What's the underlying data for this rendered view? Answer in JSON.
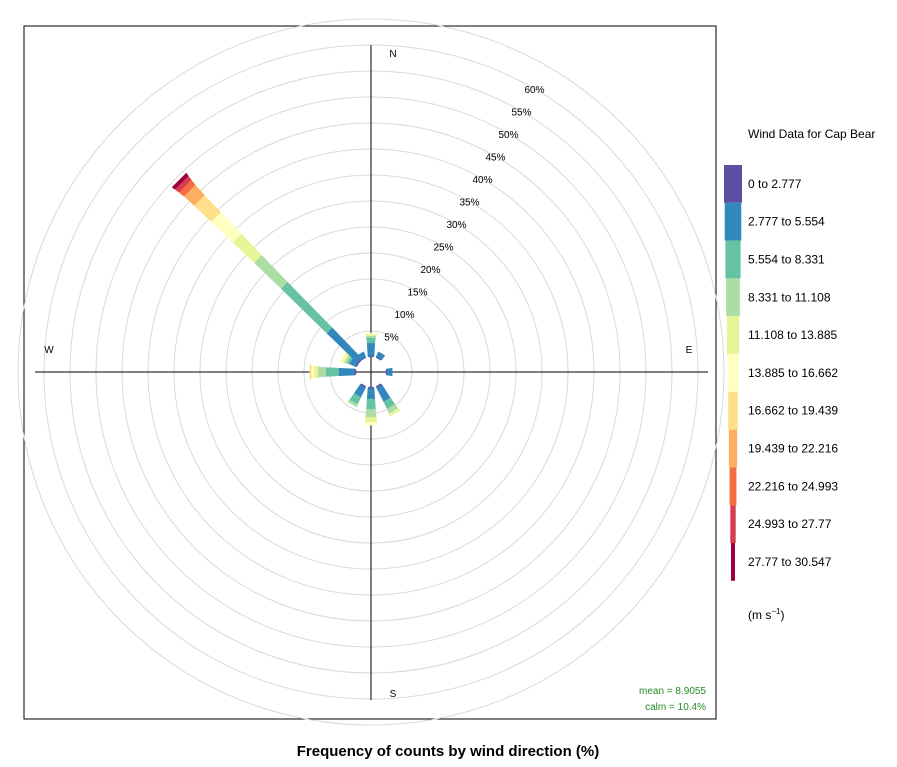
{
  "chart_data": {
    "type": "polar-stacked-bar",
    "title": "Frequency of counts by wind direction (%)",
    "compass": {
      "n": "N",
      "e": "E",
      "s": "S",
      "w": "W"
    },
    "radial_axis": {
      "unit": "%",
      "max": 65,
      "ticks": [
        5,
        10,
        15,
        20,
        25,
        30,
        35,
        40,
        45,
        50,
        55,
        60
      ],
      "tick_labels": [
        "5%",
        "10%",
        "15%",
        "20%",
        "25%",
        "30%",
        "35%",
        "40%",
        "45%",
        "50%",
        "55%",
        "60%"
      ],
      "label_angle_deg": 30
    },
    "grid": true,
    "legend": {
      "title": "Wind Data for Cap Bear",
      "position": "right",
      "units_prefix": "(m s",
      "units_sup": "−1",
      "units_suffix": ")",
      "bins": [
        {
          "label": "0 to 2.777",
          "color": "#5e4fa2"
        },
        {
          "label": "2.777 to 5.554",
          "color": "#3288bd"
        },
        {
          "label": "5.554 to 8.331",
          "color": "#66c2a5"
        },
        {
          "label": "8.331 to 11.108",
          "color": "#abdda4"
        },
        {
          "label": "11.108 to 13.885",
          "color": "#e6f598"
        },
        {
          "label": "13.885 to 16.662",
          "color": "#ffffbf"
        },
        {
          "label": "16.662 to 19.439",
          "color": "#fee08b"
        },
        {
          "label": "19.439 to 22.216",
          "color": "#fdae61"
        },
        {
          "label": "22.216 to 24.993",
          "color": "#f46d43"
        },
        {
          "label": "24.993 to 27.77",
          "color": "#d53e4f"
        },
        {
          "label": "27.77 to 30.547",
          "color": "#9e0142"
        }
      ]
    },
    "series": [
      {
        "direction_deg": 0,
        "values": [
          0.2,
          2.5,
          1.0,
          0.4,
          0.3,
          0.2,
          0,
          0,
          0,
          0,
          0
        ]
      },
      {
        "direction_deg": 30,
        "values": [
          0.2,
          1.0,
          0,
          0,
          0,
          0,
          0,
          0,
          0,
          0,
          0
        ]
      },
      {
        "direction_deg": 90,
        "values": [
          0.2,
          1.0,
          0,
          0,
          0,
          0,
          0,
          0,
          0,
          0,
          0
        ]
      },
      {
        "direction_deg": 150,
        "values": [
          0.3,
          3.0,
          1.5,
          1.0,
          0.5,
          0,
          0,
          0,
          0,
          0,
          0
        ]
      },
      {
        "direction_deg": 180,
        "values": [
          0.3,
          2.0,
          2.0,
          1.5,
          1.0,
          0.5,
          0,
          0,
          0,
          0,
          0
        ]
      },
      {
        "direction_deg": 210,
        "values": [
          0.3,
          2.0,
          1.5,
          0.5,
          0,
          0,
          0,
          0,
          0,
          0,
          0
        ]
      },
      {
        "direction_deg": 270,
        "values": [
          0.3,
          3.0,
          2.5,
          1.5,
          0.8,
          0.5,
          0.3,
          0,
          0,
          0,
          0
        ]
      },
      {
        "direction_deg": 300,
        "values": [
          0.3,
          1.2,
          0.5,
          0.5,
          0.5,
          0.3,
          0,
          0,
          0,
          0,
          0
        ]
      },
      {
        "direction_deg": 315,
        "values": [
          0.3,
          8.1,
          12.3,
          7.2,
          5.6,
          5.8,
          4.5,
          2.7,
          1.2,
          0.9,
          0.7
        ]
      },
      {
        "direction_deg": 330,
        "values": [
          0.2,
          1.0,
          0,
          0,
          0,
          0,
          0,
          0,
          0,
          0,
          0
        ]
      }
    ],
    "stats": {
      "mean": "mean = 8.9055",
      "calm": "calm = 10.4%"
    }
  }
}
